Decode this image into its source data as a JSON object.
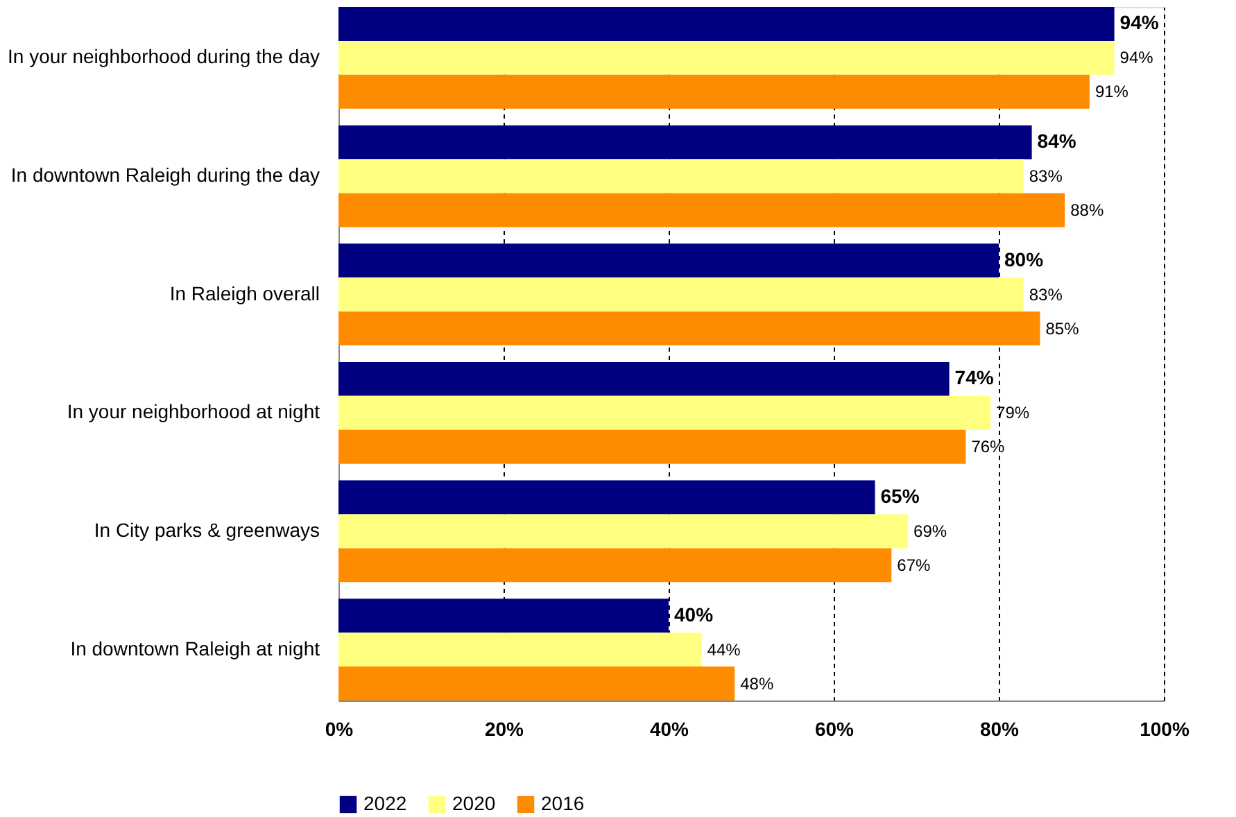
{
  "chart_data": {
    "type": "bar",
    "orientation": "horizontal",
    "categories": [
      "In your neighborhood during the day",
      "In downtown Raleigh during the day",
      "In Raleigh overall",
      "In your neighborhood at night",
      "In City parks & greenways",
      "In downtown Raleigh at night"
    ],
    "series": [
      {
        "name": "2022",
        "color": "#000080",
        "values": [
          94,
          84,
          80,
          74,
          65,
          40
        ],
        "value_labels": [
          "94%",
          "84%",
          "80%",
          "74%",
          "65%",
          "40%"
        ]
      },
      {
        "name": "2020",
        "color": "#ffff80",
        "values": [
          94,
          83,
          83,
          79,
          69,
          44
        ],
        "value_labels": [
          "94%",
          "83%",
          "83%",
          "79%",
          "69%",
          "44%"
        ]
      },
      {
        "name": "2016",
        "color": "#ff8c00",
        "values": [
          91,
          88,
          85,
          76,
          67,
          48
        ],
        "value_labels": [
          "91%",
          "88%",
          "85%",
          "76%",
          "67%",
          "48%"
        ]
      }
    ],
    "xlim": [
      0,
      100
    ],
    "xticks": [
      {
        "value": 0,
        "label": "0%"
      },
      {
        "value": 20,
        "label": "20%"
      },
      {
        "value": 40,
        "label": "40%"
      },
      {
        "value": 60,
        "label": "60%"
      },
      {
        "value": 80,
        "label": "80%"
      },
      {
        "value": 100,
        "label": "100%"
      }
    ],
    "grid": "x",
    "legend": "bottom"
  }
}
